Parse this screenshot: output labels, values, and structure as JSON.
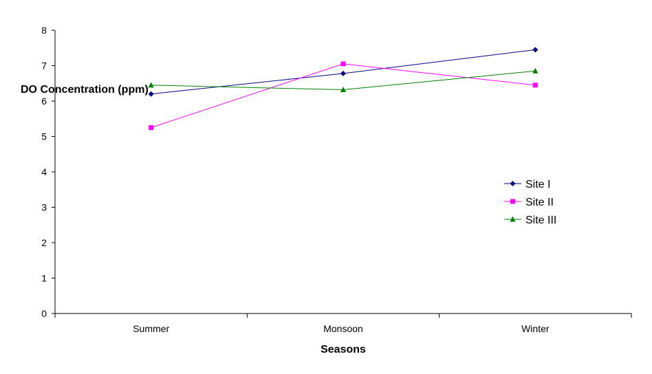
{
  "chart_data": {
    "type": "line",
    "categories": [
      "Summer",
      "Monsoon",
      "Winter"
    ],
    "series": [
      {
        "name": "Site I",
        "values": [
          6.2,
          6.78,
          7.45
        ],
        "color": "#000080",
        "marker": "diamond"
      },
      {
        "name": "Site II",
        "values": [
          5.25,
          7.05,
          6.45
        ],
        "color": "#ff00ff",
        "marker": "square"
      },
      {
        "name": "Site III",
        "values": [
          6.45,
          6.32,
          6.85
        ],
        "color": "#008000",
        "marker": "triangle"
      }
    ],
    "xlabel": "Seasons",
    "ylabel": "DO Concentration (ppm)",
    "ylim": [
      0,
      8
    ],
    "yticks": [
      "0",
      "1",
      "2",
      "3",
      "4",
      "5",
      "6",
      "7",
      "8"
    ],
    "grid": false,
    "legend_position": "right"
  }
}
